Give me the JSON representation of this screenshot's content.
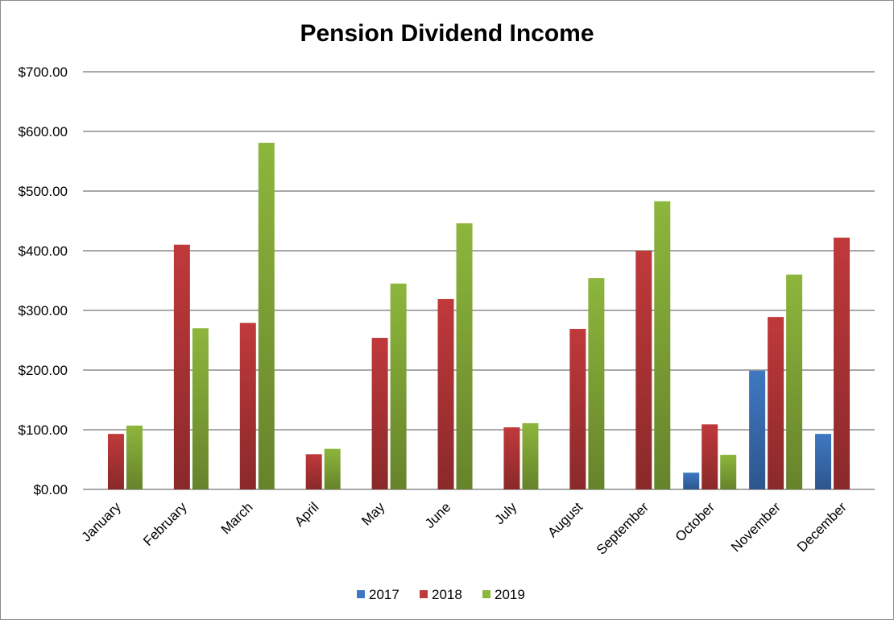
{
  "chart_data": {
    "type": "bar",
    "title": "Pension Dividend Income",
    "xlabel": "",
    "ylabel": "",
    "categories": [
      "January",
      "February",
      "March",
      "April",
      "May",
      "June",
      "July",
      "August",
      "September",
      "October",
      "November",
      "December"
    ],
    "y_ticks": [
      "$0.00",
      "$100.00",
      "$200.00",
      "$300.00",
      "$400.00",
      "$500.00",
      "$600.00",
      "$700.00"
    ],
    "ylim": [
      0,
      700
    ],
    "grid": true,
    "legend_position": "bottom",
    "series": [
      {
        "name": "2017",
        "color": "#3f78c2",
        "values": [
          null,
          null,
          null,
          null,
          null,
          null,
          null,
          null,
          null,
          28,
          199,
          93
        ]
      },
      {
        "name": "2018",
        "color": "#c0393b",
        "values": [
          93,
          410,
          279,
          59,
          254,
          319,
          104,
          269,
          400,
          109,
          289,
          422
        ]
      },
      {
        "name": "2019",
        "color": "#8db63c",
        "values": [
          107,
          270,
          581,
          68,
          345,
          446,
          111,
          354,
          483,
          58,
          360,
          null
        ]
      }
    ]
  }
}
